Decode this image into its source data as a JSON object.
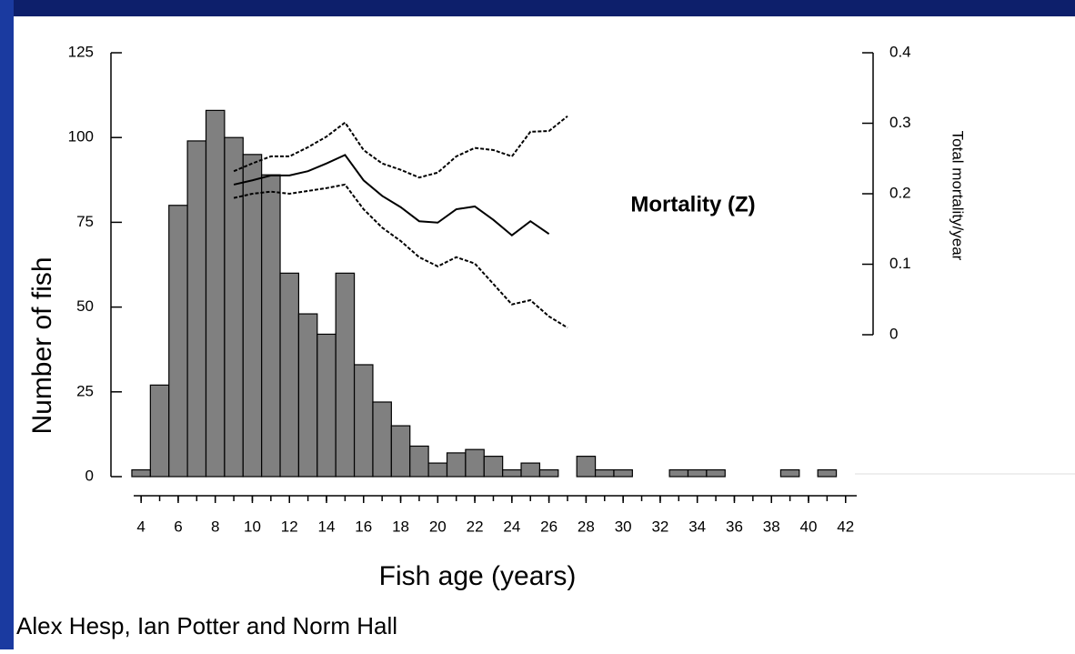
{
  "chart_data": {
    "type": "bar",
    "annotation": "Mortality (Z)",
    "xlabel": "Fish age (years)",
    "ylabel": "Number of fish",
    "y2label": "Total mortality/year",
    "footer": "Alex Hesp, Ian Potter and Norm Hall",
    "x": [
      4,
      5,
      6,
      7,
      8,
      9,
      10,
      11,
      12,
      13,
      14,
      15,
      16,
      17,
      18,
      19,
      20,
      21,
      22,
      23,
      24,
      25,
      26,
      27,
      28,
      29,
      30,
      31,
      32,
      33,
      34,
      35,
      36,
      37,
      38,
      39,
      40,
      41,
      42
    ],
    "xlim": [
      3.6,
      42.6
    ],
    "xticks": [
      4,
      6,
      8,
      10,
      12,
      14,
      16,
      18,
      20,
      22,
      24,
      26,
      28,
      30,
      32,
      34,
      36,
      38,
      40,
      42
    ],
    "ylim": [
      0,
      125
    ],
    "yticks": [
      0,
      25,
      50,
      75,
      100,
      125
    ],
    "y2lim": [
      0,
      0.4
    ],
    "y2ticks": [
      0,
      0.1,
      0.2,
      0.3,
      0.4
    ],
    "series": [
      {
        "type": "bar",
        "color": "#808080",
        "values": [
          2,
          27,
          80,
          99,
          108,
          100,
          95,
          89,
          60,
          48,
          42,
          60,
          33,
          22,
          15,
          9,
          4,
          7,
          8,
          6,
          2,
          4,
          2,
          0,
          6,
          2,
          2,
          0,
          0,
          2,
          2,
          2,
          0,
          0,
          0,
          2,
          0,
          2,
          0
        ]
      },
      {
        "type": "line",
        "axis": "y2",
        "color": "#000000",
        "line_style": "dashed",
        "values": [
          null,
          null,
          null,
          null,
          null,
          0.232,
          0.243,
          0.253,
          0.253,
          0.266,
          0.281,
          0.301,
          0.262,
          0.243,
          0.234,
          0.223,
          0.23,
          0.253,
          0.265,
          0.262,
          0.253,
          0.288,
          0.289,
          0.31,
          null,
          null,
          null,
          null,
          null,
          null,
          null,
          null,
          null,
          null,
          null,
          null,
          null,
          null,
          null
        ]
      },
      {
        "type": "line",
        "axis": "y2",
        "color": "#000000",
        "line_style": "solid",
        "values": [
          null,
          null,
          null,
          null,
          null,
          0.213,
          0.219,
          0.226,
          0.226,
          0.232,
          0.243,
          0.255,
          0.219,
          0.197,
          0.181,
          0.161,
          0.159,
          0.178,
          0.182,
          0.163,
          0.141,
          0.161,
          0.143,
          null,
          null,
          null,
          null,
          null,
          null,
          null,
          null,
          null,
          null,
          null,
          null,
          null,
          null,
          null,
          null
        ]
      },
      {
        "type": "line",
        "axis": "y2",
        "color": "#000000",
        "line_style": "dashed",
        "values": [
          null,
          null,
          null,
          null,
          null,
          0.194,
          0.2,
          0.203,
          0.2,
          0.204,
          0.208,
          0.213,
          0.178,
          0.152,
          0.133,
          0.11,
          0.097,
          0.11,
          0.101,
          0.072,
          0.043,
          0.049,
          0.026,
          0.01,
          null,
          null,
          null,
          null,
          null,
          null,
          null,
          null,
          null,
          null,
          null,
          null,
          null,
          null,
          null
        ]
      }
    ]
  }
}
